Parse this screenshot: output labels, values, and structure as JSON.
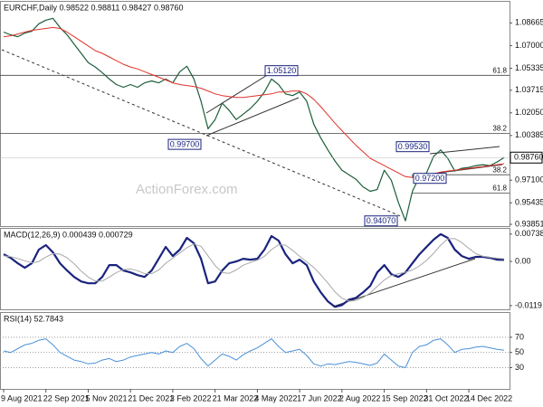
{
  "chart_data": [
    {
      "type": "line",
      "title": "EURCHF,Daily  0.98522 0.98811 0.98427 0.98760",
      "watermark": "ActionForex.com",
      "series": [
        {
          "name": "Close",
          "color": "#1b5e3a",
          "width": 1.2,
          "values": [
            1.0799,
            1.0779,
            1.0765,
            1.0792,
            1.0806,
            1.086,
            1.0887,
            1.09,
            1.0833,
            1.0779,
            1.0711,
            1.0643,
            1.0575,
            1.0542,
            1.0501,
            1.0454,
            1.0413,
            1.0393,
            1.0413,
            1.0393,
            1.0426,
            1.044,
            1.0426,
            1.0454,
            1.0426,
            1.0508,
            1.0548,
            1.0454,
            1.0291,
            1.0088,
            1.0156,
            1.0277,
            1.0223,
            1.0156,
            1.0196,
            1.0237,
            1.0291,
            1.0359,
            1.0454,
            1.0413,
            1.0345,
            1.0332,
            1.0359,
            1.0291,
            1.0122,
            1.002,
            0.9932,
            0.9851,
            0.9783,
            0.975,
            0.9716,
            0.9661,
            0.9628,
            0.9641,
            0.9783,
            0.9709,
            0.9546,
            0.9411,
            0.9628,
            0.9736,
            0.9763,
            0.9885,
            0.9932,
            0.9871,
            0.9777,
            0.9797,
            0.9804,
            0.9817,
            0.9824,
            0.9817,
            0.9844,
            0.9876
          ]
        },
        {
          "name": "MA",
          "color": "#e0322b",
          "width": 1,
          "values": [
            1.0765,
            1.0772,
            1.0785,
            1.0799,
            1.0812,
            1.0819,
            1.0826,
            1.0833,
            1.0826,
            1.0799,
            1.0765,
            1.0731,
            1.0697,
            1.0663,
            1.0643,
            1.0616,
            1.0589,
            1.0562,
            1.0542,
            1.0528,
            1.0508,
            1.0487,
            1.0467,
            1.0447,
            1.0426,
            1.0413,
            1.0406,
            1.0399,
            1.0386,
            1.0366,
            1.0345,
            1.0332,
            1.0325,
            1.0318,
            1.0318,
            1.0325,
            1.0332,
            1.0338,
            1.0345,
            1.0359,
            1.0359,
            1.0366,
            1.0366,
            1.0345,
            1.0305,
            1.025,
            1.019,
            1.0129,
            1.0074,
            1.002,
            0.9966,
            0.9919,
            0.9871,
            0.9844,
            0.9817,
            0.979,
            0.9763,
            0.9736,
            0.9729,
            0.9729,
            0.9743,
            0.9756,
            0.977,
            0.9777,
            0.9783,
            0.979,
            0.9797,
            0.9804,
            0.981,
            0.9817,
            0.9824,
            0.9831
          ]
        }
      ],
      "ylim": [
        0.9372,
        1.1022
      ],
      "yticks": [
        1.08665,
        {
          "value": 1.07,
          "label": "1.07000"
        },
        1.05335,
        1.03715,
        {
          "value": 1.0205,
          "label": "1.02050"
        },
        1.00385,
        {
          "value": 0.971,
          "label": "0.97100"
        },
        0.95435,
        0.93851
      ],
      "last_price": {
        "value": 0.9876,
        "label": "0.98760"
      },
      "levels": [
        {
          "label": "61.8",
          "value": 1.0481
        },
        {
          "label": "38.2",
          "value": 1.0054
        },
        {
          "label": "38.2",
          "value": 0.975
        },
        {
          "label": "61.8",
          "value": 0.9614
        }
      ],
      "annotations": [
        {
          "label": "1.05120",
          "value": 1.0512
        },
        {
          "label": "0.99700",
          "value": 0.997
        },
        {
          "label": "0.99530",
          "value": 0.9953
        },
        {
          "label": "0.97200",
          "value": 0.972
        },
        {
          "label": "0.94070",
          "value": 0.9407
        }
      ]
    },
    {
      "type": "line",
      "title": "MACD(12,26,9) 0.000439 0.000729",
      "series": [
        {
          "name": "MACD",
          "color": "#1a237e",
          "width": 2.2,
          "values": [
            0.00196,
            0.00098,
            -0.00049,
            -0.00172,
            -0.00049,
            0.00319,
            0.00441,
            0.00245,
            -0.00049,
            -0.00245,
            -0.00417,
            -0.00539,
            -0.00588,
            -0.00588,
            -0.00417,
            -0.00098,
            -0.00098,
            -0.00245,
            -0.00294,
            -0.00368,
            -0.00417,
            -0.00245,
            0.00074,
            0.00392,
            0.00147,
            0.00319,
            0.00637,
            0.0049,
            0.00074,
            -0.00588,
            -0.00539,
            -0.00245,
            -0.00049,
            0,
            0.00074,
            0.00049,
            0.00074,
            0.00319,
            0.00686,
            0.00564,
            0.00196,
            -0.00049,
            0.00049,
            -0.00098,
            -0.00539,
            -0.00833,
            -0.01078,
            -0.01225,
            -0.01176,
            -0.01029,
            -0.0098,
            -0.00833,
            -0.00662,
            -0.00294,
            -0.00098,
            -0.00343,
            -0.00417,
            -0.00294,
            -0.00049,
            0.00196,
            0.00392,
            0.00588,
            0.00735,
            0.00637,
            0.00319,
            0.00147,
            0.00074,
            0.00123,
            0.00123,
            0.00098,
            0.00049,
            0.000439
          ]
        },
        {
          "name": "Signal",
          "color": "#a8a8a8",
          "width": 1,
          "values": [
            0.0015,
            0.0013,
            0.0008,
            0.0002,
            -0.0004,
            0,
            0.0012,
            0.0021,
            0.002,
            0.001,
            -0.0006,
            -0.0026,
            -0.0042,
            -0.0053,
            -0.0053,
            -0.0042,
            -0.003,
            -0.0022,
            -0.002,
            -0.0025,
            -0.0033,
            -0.0033,
            -0.0023,
            -0.0005,
            0.0009,
            0.0023,
            0.0037,
            0.0047,
            0.0041,
            0.0015,
            -0.0011,
            -0.003,
            -0.0032,
            -0.0023,
            -0.001,
            -0.0003,
            0.0004,
            0.0014,
            0.0032,
            0.0045,
            0.0044,
            0.003,
            0.0014,
            -0.0001,
            -0.0016,
            -0.0036,
            -0.0058,
            -0.0082,
            -0.0099,
            -0.0107,
            -0.0105,
            -0.0097,
            -0.0085,
            -0.0067,
            -0.005,
            -0.0038,
            -0.0033,
            -0.0029,
            -0.0023,
            -0.0012,
            0.0003,
            0.0022,
            0.0044,
            0.0061,
            0.0062,
            0.0051,
            0.0035,
            0.0021,
            0.0014,
            0.0011,
            0.0009,
            0.000729
          ]
        }
      ],
      "ylim": [
        -0.0129,
        0.0088
      ],
      "yticks": [
        0.00738,
        {
          "value": 0,
          "label": "0.00"
        },
        -0.0119
      ]
    },
    {
      "type": "line",
      "title": "RSI(14) 52.7843",
      "series": [
        {
          "name": "RSI",
          "color": "#4a90d9",
          "width": 1,
          "values": [
            52,
            50,
            55,
            60,
            62,
            66,
            68,
            60,
            50,
            45,
            40,
            38,
            35,
            36,
            40,
            42,
            38,
            40,
            44,
            46,
            48,
            50,
            48,
            52,
            50,
            58,
            62,
            55,
            42,
            32,
            40,
            48,
            45,
            40,
            47,
            52,
            56,
            62,
            68,
            58,
            50,
            52,
            54,
            46,
            35,
            32,
            35,
            34,
            36,
            38,
            37,
            35,
            33,
            36,
            48,
            40,
            32,
            30,
            50,
            58,
            60,
            66,
            68,
            60,
            50,
            54,
            55,
            57,
            58,
            56,
            54,
            52.7843
          ]
        }
      ],
      "ylim": [
        2,
        102
      ],
      "yticks": [
        70,
        50,
        30
      ],
      "grid": true,
      "categories": [
        "9 Aug 2021",
        null,
        null,
        null,
        null,
        null,
        "22 Sep 2021",
        null,
        null,
        null,
        null,
        null,
        "5 Nov 2021",
        null,
        null,
        null,
        null,
        null,
        "21 Dec 2021",
        null,
        null,
        null,
        null,
        null,
        "3 Feb 2022",
        null,
        null,
        null,
        null,
        null,
        "21 Mar 2022",
        null,
        null,
        null,
        null,
        null,
        "4 May 2022",
        null,
        null,
        null,
        null,
        null,
        "17 Jun 2022",
        null,
        null,
        null,
        null,
        null,
        "2 Aug 2022",
        null,
        null,
        null,
        null,
        null,
        "15 Sep 2022",
        null,
        null,
        null,
        null,
        null,
        "31 Oct 2022",
        null,
        null,
        null,
        null,
        null,
        "14 Dec 2022",
        null,
        null,
        null,
        null,
        null
      ]
    }
  ]
}
